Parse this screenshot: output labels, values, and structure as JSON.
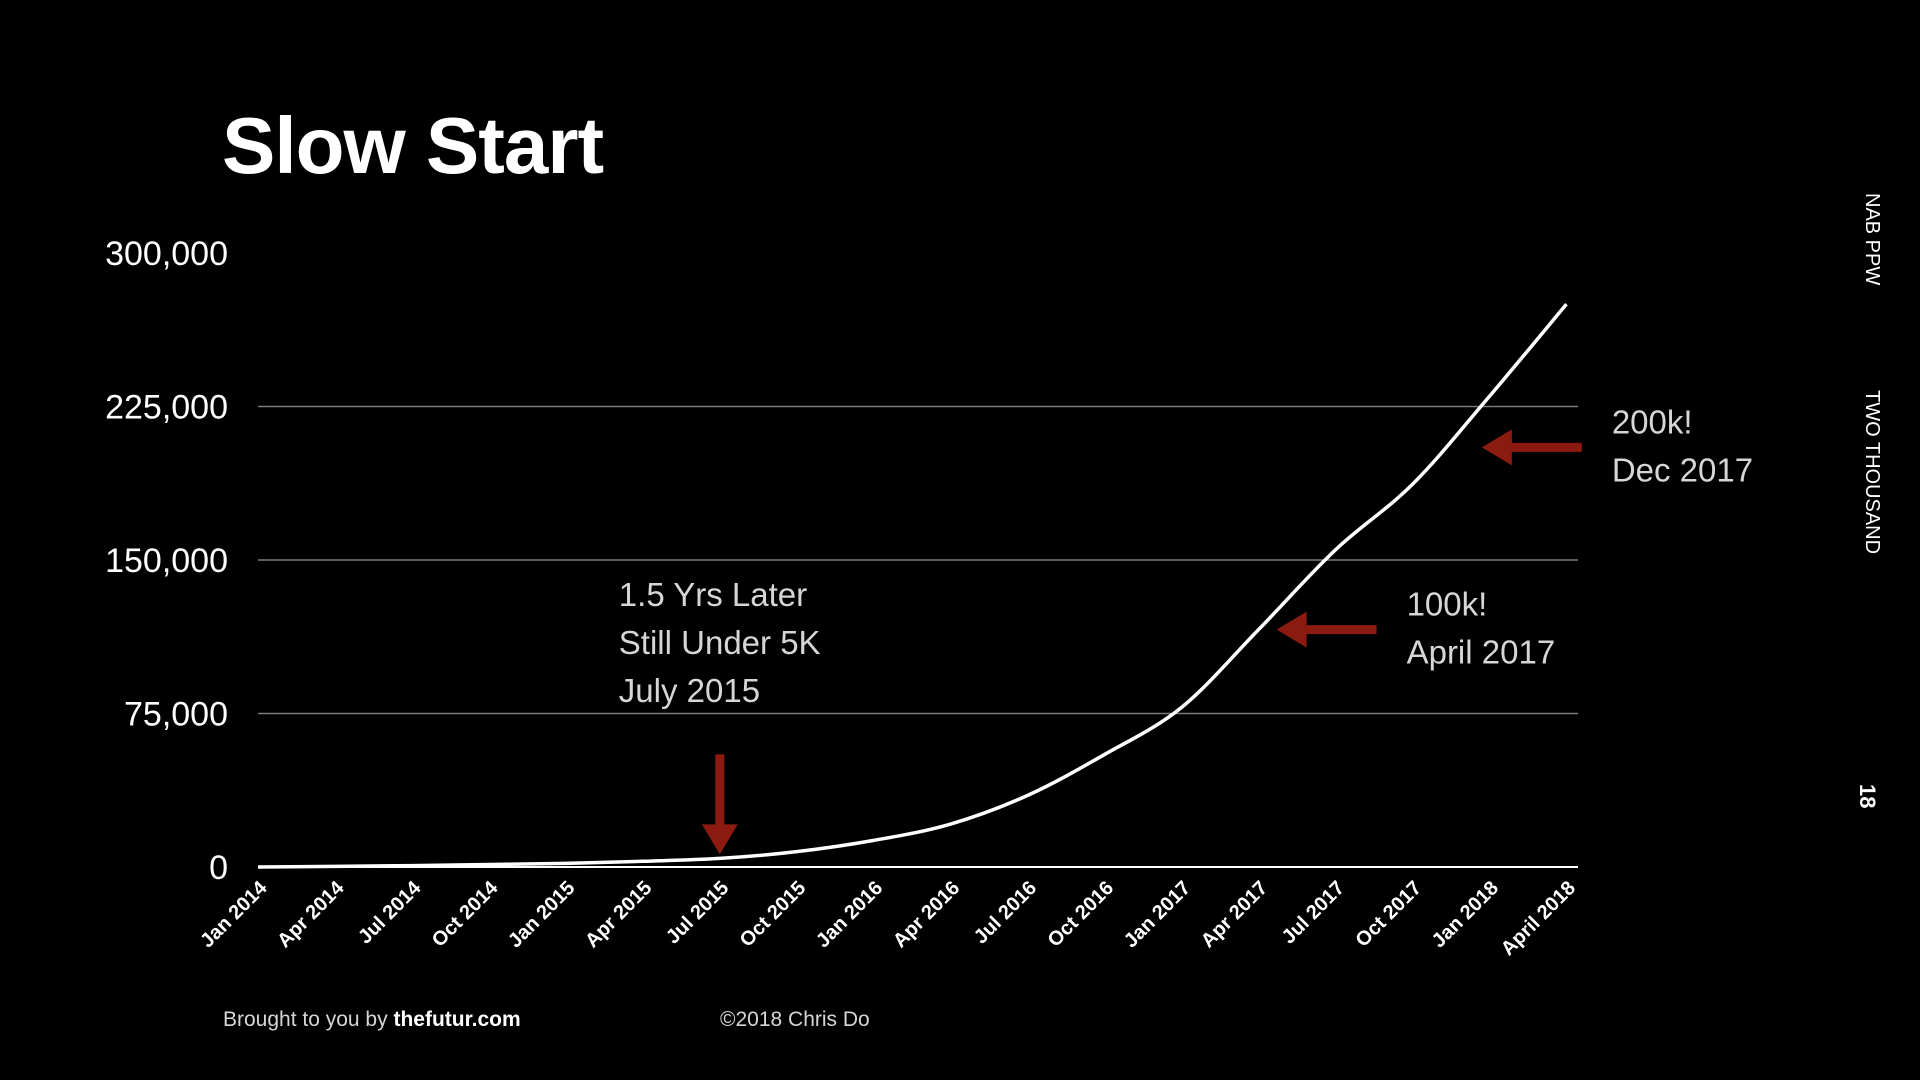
{
  "slide": {
    "title": "Slow Start",
    "footer_prefix": "Brought to you by ",
    "footer_brand": "thefutur.com",
    "copyright": "©2018 Chris Do",
    "side_label_1": "NAB PPW",
    "side_label_2": "TWO THOUSAND",
    "page_number": "18"
  },
  "chart_data": {
    "type": "line",
    "title": "Slow Start",
    "xlabel": "",
    "ylabel": "",
    "ylim": [
      0,
      300000
    ],
    "yticks": [
      0,
      75000,
      150000,
      225000,
      300000
    ],
    "ytick_labels": [
      "0",
      "75,000",
      "150,000",
      "225,000",
      "300,000"
    ],
    "gridlines": [
      75000,
      150000,
      225000
    ],
    "xtick_labels": [
      "Jan 2014",
      "Apr 2014",
      "Jul 2014",
      "Oct 2014",
      "Jan 2015",
      "Apr 2015",
      "Jul 2015",
      "Oct 2015",
      "Jan 2016",
      "Apr 2016",
      "Jul 2016",
      "Oct 2016",
      "Jan 2017",
      "Apr 2017",
      "Jul 2017",
      "Oct 2017",
      "Jan 2018",
      "April 2018"
    ],
    "x": [
      "Jan 2014",
      "Apr 2014",
      "Jul 2014",
      "Oct 2014",
      "Jan 2015",
      "Apr 2015",
      "Jul 2015",
      "Oct 2015",
      "Jan 2016",
      "Apr 2016",
      "Jul 2016",
      "Oct 2016",
      "Jan 2017",
      "Apr 2017",
      "Jul 2017",
      "Oct 2017",
      "Jan 2018",
      "April 2018"
    ],
    "series": [
      {
        "values": [
          0,
          300,
          700,
          1200,
          1800,
          2800,
          4200,
          7500,
          13000,
          21000,
          35000,
          55000,
          78000,
          116000,
          155000,
          187000,
          230000,
          275000
        ],
        "color": "#ffffff"
      }
    ],
    "annotations": [
      {
        "lines": [
          "1.5 Yrs Later",
          "Still Under 5K",
          "July 2015"
        ],
        "x": "Jul 2015",
        "y": 4200,
        "arrow": "down",
        "arrow_color": "#8b1a10"
      },
      {
        "lines": [
          "100k!",
          "April 2017"
        ],
        "x": "Apr 2017",
        "y": 116000,
        "arrow": "left",
        "arrow_color": "#8b1a10"
      },
      {
        "lines": [
          "200k!",
          "Dec 2017"
        ],
        "x": "Dec 2017",
        "y": 205000,
        "arrow": "left",
        "arrow_color": "#8b1a10"
      }
    ]
  }
}
